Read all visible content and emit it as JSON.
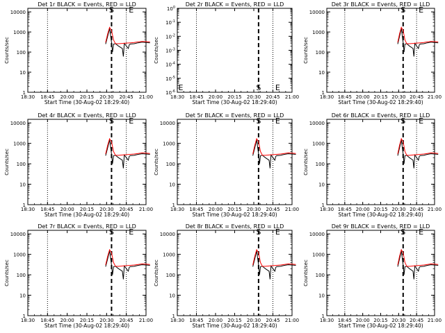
{
  "colors": {
    "events": "#000000",
    "lld": "#ff0000",
    "axes": "#000000",
    "background": "#ffffff"
  },
  "markers": {
    "start_label": "S",
    "end_label": "E"
  },
  "chart_data": [
    {
      "type": "line",
      "title": "Det 1r BLACK = Events, RED = LLD",
      "xlabel": "Start Time (30-Aug-02 18:29:40)",
      "ylabel": "Counts/sec",
      "x_ticks": [
        "18:30",
        "18:45",
        "20:00",
        "20:15",
        "20:30",
        "20:45",
        "21:00"
      ],
      "y_ticks": [
        "1",
        "10",
        "100",
        "1000",
        "10000"
      ],
      "y_scale": "log",
      "ylim": [
        1,
        15000
      ],
      "dotted_lines_at_tick": [
        1,
        5
      ],
      "start_line_at_tick": 4.25,
      "start_label_at_tick": 4.25,
      "end_label_at_tick": 5.25,
      "series": [
        {
          "role": "events",
          "x_tick": [
            3.95,
            4.05,
            4.15,
            4.25,
            4.3,
            4.35,
            4.45,
            4.6,
            4.8,
            4.85,
            4.9,
            5.1,
            5.15,
            5.2,
            5.4,
            5.6,
            5.8,
            6.0,
            6.2
          ],
          "y": [
            250,
            600,
            1500,
            300,
            100,
            250,
            260,
            200,
            150,
            60,
            270,
            150,
            230,
            250,
            260,
            290,
            310,
            300,
            290
          ]
        },
        {
          "role": "lld",
          "x_tick": [
            3.95,
            4.05,
            4.15,
            4.25,
            4.35,
            4.45,
            4.6,
            4.8,
            5.0,
            5.2,
            5.4,
            5.6,
            5.8,
            6.0,
            6.2
          ],
          "y": [
            300,
            800,
            1700,
            1200,
            400,
            260,
            260,
            270,
            280,
            290,
            300,
            320,
            340,
            330,
            320
          ]
        }
      ]
    },
    {
      "type": "line",
      "title": "Det 2r BLACK = Events, RED = LLD",
      "xlabel": "Start Time (30-Aug-02 18:29:40)",
      "ylabel": "Counts/sec",
      "x_ticks": [
        "18:30",
        "18:45",
        "20:00",
        "20:15",
        "20:30",
        "20:45",
        "21:00"
      ],
      "y_ticks": [
        "10<sup>-6</sup>",
        "10<sup>-5</sup>",
        "10<sup>-4</sup>",
        "10<sup>-3</sup>",
        "10<sup>-2</sup>",
        "10<sup>-1</sup>",
        "10<sup>0</sup>"
      ],
      "y_scale": "log",
      "ylim": [
        1e-06,
        1
      ],
      "dotted_lines_at_tick": [
        1,
        5
      ],
      "start_line_at_tick": 4.25,
      "start_label_at_tick": 4.25,
      "end_label_at_tick": 5.25,
      "series": []
    },
    {
      "type": "line",
      "title": "Det 3r BLACK = Events, RED = LLD",
      "xlabel": "Start Time (30-Aug-02 18:29:40)",
      "ylabel": "Counts/sec",
      "x_ticks": [
        "18:30",
        "18:45",
        "20:00",
        "20:15",
        "20:30",
        "20:45",
        "21:00"
      ],
      "y_ticks": [
        "1",
        "10",
        "100",
        "1000",
        "10000"
      ],
      "y_scale": "log",
      "ylim": [
        1,
        15000
      ],
      "dotted_lines_at_tick": [
        1,
        5
      ],
      "start_line_at_tick": 4.25,
      "start_label_at_tick": 4.25,
      "end_label_at_tick": 5.25,
      "series": [
        {
          "role": "events",
          "x_tick": [
            3.95,
            4.05,
            4.15,
            4.25,
            4.3,
            4.35,
            4.45,
            4.6,
            4.8,
            4.85,
            4.9,
            5.1,
            5.15,
            5.2,
            5.4,
            5.6,
            5.8,
            6.0,
            6.2
          ],
          "y": [
            250,
            600,
            1500,
            300,
            100,
            250,
            260,
            200,
            150,
            60,
            270,
            150,
            230,
            250,
            260,
            290,
            310,
            300,
            290
          ]
        },
        {
          "role": "lld",
          "x_tick": [
            3.95,
            4.05,
            4.15,
            4.25,
            4.35,
            4.45,
            4.6,
            4.8,
            5.0,
            5.2,
            5.4,
            5.6,
            5.8,
            6.0,
            6.2
          ],
          "y": [
            300,
            800,
            1700,
            1200,
            400,
            260,
            260,
            270,
            280,
            290,
            300,
            320,
            340,
            330,
            320
          ]
        }
      ]
    },
    {
      "type": "line",
      "title": "Det 4r BLACK = Events, RED = LLD",
      "xlabel": "Start Time (30-Aug-02 18:29:40)",
      "ylabel": "Counts/sec",
      "x_ticks": [
        "18:30",
        "18:45",
        "20:00",
        "20:15",
        "20:30",
        "20:45",
        "21:00"
      ],
      "y_ticks": [
        "1",
        "10",
        "100",
        "1000",
        "10000"
      ],
      "y_scale": "log",
      "ylim": [
        1,
        15000
      ],
      "dotted_lines_at_tick": [
        1,
        5
      ],
      "start_line_at_tick": 4.25,
      "start_label_at_tick": 4.25,
      "end_label_at_tick": 5.25,
      "series": [
        {
          "role": "events",
          "x_tick": [
            3.95,
            4.05,
            4.15,
            4.25,
            4.3,
            4.35,
            4.45,
            4.6,
            4.8,
            4.85,
            4.9,
            5.1,
            5.15,
            5.2,
            5.4,
            5.6,
            5.8,
            6.0,
            6.2
          ],
          "y": [
            250,
            600,
            1500,
            300,
            100,
            250,
            260,
            200,
            150,
            60,
            270,
            150,
            230,
            250,
            260,
            290,
            310,
            300,
            290
          ]
        },
        {
          "role": "lld",
          "x_tick": [
            3.95,
            4.05,
            4.15,
            4.25,
            4.35,
            4.45,
            4.6,
            4.8,
            5.0,
            5.2,
            5.4,
            5.6,
            5.8,
            6.0,
            6.2
          ],
          "y": [
            300,
            800,
            1700,
            1200,
            400,
            260,
            260,
            270,
            280,
            290,
            300,
            320,
            340,
            330,
            320
          ]
        }
      ]
    },
    {
      "type": "line",
      "title": "Det 5r BLACK = Events, RED = LLD",
      "xlabel": "Start Time (30-Aug-02 18:29:40)",
      "ylabel": "Counts/sec",
      "x_ticks": [
        "18:30",
        "18:45",
        "20:00",
        "20:15",
        "20:30",
        "20:45",
        "21:00"
      ],
      "y_ticks": [
        "1",
        "10",
        "100",
        "1000",
        "10000"
      ],
      "y_scale": "log",
      "ylim": [
        1,
        15000
      ],
      "dotted_lines_at_tick": [
        1,
        5
      ],
      "start_line_at_tick": 4.25,
      "start_label_at_tick": 4.25,
      "end_label_at_tick": 5.25,
      "series": [
        {
          "role": "events",
          "x_tick": [
            3.95,
            4.05,
            4.15,
            4.25,
            4.3,
            4.35,
            4.45,
            4.6,
            4.8,
            4.85,
            4.9,
            5.1,
            5.15,
            5.2,
            5.4,
            5.6,
            5.8,
            6.0,
            6.2
          ],
          "y": [
            250,
            600,
            1500,
            300,
            100,
            250,
            260,
            200,
            150,
            60,
            270,
            150,
            230,
            250,
            260,
            290,
            310,
            300,
            290
          ]
        },
        {
          "role": "lld",
          "x_tick": [
            3.95,
            4.05,
            4.15,
            4.25,
            4.35,
            4.45,
            4.6,
            4.8,
            5.0,
            5.2,
            5.4,
            5.6,
            5.8,
            6.0,
            6.2
          ],
          "y": [
            300,
            800,
            1700,
            1200,
            400,
            260,
            260,
            270,
            280,
            290,
            300,
            320,
            340,
            330,
            320
          ]
        }
      ]
    },
    {
      "type": "line",
      "title": "Det 6r BLACK = Events, RED = LLD",
      "xlabel": "Start Time (30-Aug-02 18:29:40)",
      "ylabel": "Counts/sec",
      "x_ticks": [
        "18:30",
        "18:45",
        "20:00",
        "20:15",
        "20:30",
        "20:45",
        "21:00"
      ],
      "y_ticks": [
        "1",
        "10",
        "100",
        "1000",
        "10000"
      ],
      "y_scale": "log",
      "ylim": [
        1,
        15000
      ],
      "dotted_lines_at_tick": [
        1,
        5
      ],
      "start_line_at_tick": 4.25,
      "start_label_at_tick": 4.25,
      "end_label_at_tick": 5.25,
      "series": [
        {
          "role": "events",
          "x_tick": [
            3.95,
            4.05,
            4.15,
            4.25,
            4.3,
            4.35,
            4.45,
            4.6,
            4.8,
            4.85,
            4.9,
            5.1,
            5.15,
            5.2,
            5.4,
            5.6,
            5.8,
            6.0,
            6.2
          ],
          "y": [
            250,
            600,
            1500,
            300,
            100,
            250,
            260,
            200,
            150,
            60,
            270,
            150,
            230,
            250,
            260,
            290,
            310,
            300,
            290
          ]
        },
        {
          "role": "lld",
          "x_tick": [
            3.95,
            4.05,
            4.15,
            4.25,
            4.35,
            4.45,
            4.6,
            4.8,
            5.0,
            5.2,
            5.4,
            5.6,
            5.8,
            6.0,
            6.2
          ],
          "y": [
            300,
            800,
            1700,
            1200,
            400,
            260,
            260,
            270,
            280,
            290,
            300,
            320,
            340,
            330,
            320
          ]
        }
      ]
    },
    {
      "type": "line",
      "title": "Det 7r BLACK = Events, RED = LLD",
      "xlabel": "Start Time (30-Aug-02 18:29:40)",
      "ylabel": "Counts/sec",
      "x_ticks": [
        "18:30",
        "18:45",
        "20:00",
        "20:15",
        "20:30",
        "20:45",
        "21:00"
      ],
      "y_ticks": [
        "1",
        "10",
        "100",
        "1000",
        "10000"
      ],
      "y_scale": "log",
      "ylim": [
        1,
        15000
      ],
      "dotted_lines_at_tick": [
        1,
        5
      ],
      "start_line_at_tick": 4.25,
      "start_label_at_tick": 4.25,
      "end_label_at_tick": 5.25,
      "series": [
        {
          "role": "events",
          "x_tick": [
            3.95,
            4.05,
            4.15,
            4.25,
            4.3,
            4.35,
            4.45,
            4.6,
            4.8,
            4.85,
            4.9,
            5.1,
            5.15,
            5.2,
            5.4,
            5.6,
            5.8,
            6.0,
            6.2
          ],
          "y": [
            250,
            600,
            1500,
            300,
            100,
            250,
            260,
            200,
            150,
            60,
            270,
            150,
            230,
            250,
            260,
            290,
            310,
            300,
            290
          ]
        },
        {
          "role": "lld",
          "x_tick": [
            3.95,
            4.05,
            4.15,
            4.25,
            4.35,
            4.45,
            4.6,
            4.8,
            5.0,
            5.2,
            5.4,
            5.6,
            5.8,
            6.0,
            6.2
          ],
          "y": [
            300,
            800,
            1700,
            1200,
            400,
            260,
            260,
            270,
            280,
            290,
            300,
            320,
            340,
            330,
            320
          ]
        }
      ]
    },
    {
      "type": "line",
      "title": "Det 8r BLACK = Events, RED = LLD",
      "xlabel": "Start Time (30-Aug-02 18:29:40)",
      "ylabel": "Counts/sec",
      "x_ticks": [
        "18:30",
        "18:45",
        "20:00",
        "20:15",
        "20:30",
        "20:45",
        "21:00"
      ],
      "y_ticks": [
        "1",
        "10",
        "100",
        "1000",
        "10000"
      ],
      "y_scale": "log",
      "ylim": [
        1,
        15000
      ],
      "dotted_lines_at_tick": [
        1,
        5
      ],
      "start_line_at_tick": 4.25,
      "start_label_at_tick": 4.25,
      "end_label_at_tick": 5.25,
      "series": [
        {
          "role": "events",
          "x_tick": [
            3.95,
            4.05,
            4.15,
            4.25,
            4.3,
            4.35,
            4.45,
            4.6,
            4.8,
            4.85,
            4.9,
            5.1,
            5.15,
            5.2,
            5.4,
            5.6,
            5.8,
            6.0,
            6.2
          ],
          "y": [
            250,
            600,
            1500,
            300,
            100,
            250,
            260,
            200,
            150,
            60,
            270,
            150,
            230,
            250,
            260,
            290,
            310,
            300,
            290
          ]
        },
        {
          "role": "lld",
          "x_tick": [
            3.95,
            4.05,
            4.15,
            4.25,
            4.35,
            4.45,
            4.6,
            4.8,
            5.0,
            5.2,
            5.4,
            5.6,
            5.8,
            6.0,
            6.2
          ],
          "y": [
            300,
            800,
            1700,
            1200,
            400,
            260,
            260,
            270,
            280,
            290,
            300,
            320,
            340,
            330,
            320
          ]
        }
      ]
    },
    {
      "type": "line",
      "title": "Det 9r BLACK = Events, RED = LLD",
      "xlabel": "Start Time (30-Aug-02 18:29:40)",
      "ylabel": "Counts/sec",
      "x_ticks": [
        "18:30",
        "18:45",
        "20:00",
        "20:15",
        "20:30",
        "20:45",
        "21:00"
      ],
      "y_ticks": [
        "1",
        "10",
        "100",
        "1000",
        "10000"
      ],
      "y_scale": "log",
      "ylim": [
        1,
        15000
      ],
      "dotted_lines_at_tick": [
        1,
        5
      ],
      "start_line_at_tick": 4.25,
      "start_label_at_tick": 4.25,
      "end_label_at_tick": 5.25,
      "series": [
        {
          "role": "events",
          "x_tick": [
            3.95,
            4.05,
            4.15,
            4.25,
            4.3,
            4.35,
            4.45,
            4.6,
            4.8,
            4.85,
            4.9,
            5.1,
            5.15,
            5.2,
            5.4,
            5.6,
            5.8,
            6.0,
            6.2
          ],
          "y": [
            250,
            600,
            1500,
            300,
            100,
            250,
            260,
            200,
            150,
            60,
            270,
            150,
            230,
            250,
            260,
            290,
            310,
            300,
            290
          ]
        },
        {
          "role": "lld",
          "x_tick": [
            3.95,
            4.05,
            4.15,
            4.25,
            4.35,
            4.45,
            4.6,
            4.8,
            5.0,
            5.2,
            5.4,
            5.6,
            5.8,
            6.0,
            6.2
          ],
          "y": [
            300,
            800,
            1700,
            1200,
            400,
            260,
            260,
            270,
            280,
            290,
            300,
            320,
            340,
            330,
            320
          ]
        }
      ]
    }
  ]
}
